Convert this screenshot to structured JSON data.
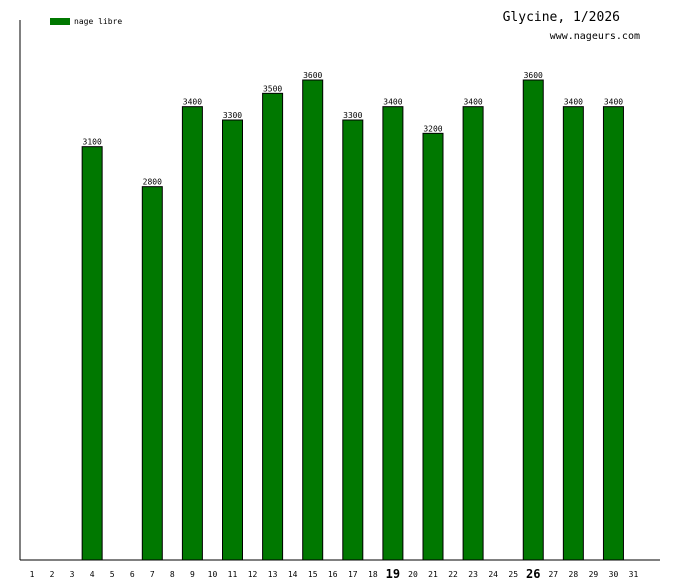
{
  "header": {
    "title": "Glycine, 1/2026",
    "site": "www.nageurs.com"
  },
  "legend": {
    "label": "nage libre",
    "color": "#007800"
  },
  "chart_data": {
    "type": "bar",
    "categories": [
      "1",
      "2",
      "3",
      "4",
      "5",
      "6",
      "7",
      "8",
      "9",
      "10",
      "11",
      "12",
      "13",
      "14",
      "15",
      "16",
      "17",
      "18",
      "19",
      "20",
      "21",
      "22",
      "23",
      "24",
      "25",
      "26",
      "27",
      "28",
      "29",
      "30",
      "31"
    ],
    "emphasized_categories": [
      "19",
      "26"
    ],
    "series": [
      {
        "name": "nage libre",
        "color": "#007800",
        "values": [
          null,
          null,
          null,
          3100,
          null,
          null,
          2800,
          null,
          3400,
          null,
          3300,
          null,
          3500,
          null,
          3600,
          null,
          3300,
          null,
          3400,
          null,
          3200,
          null,
          3400,
          null,
          null,
          3600,
          null,
          3400,
          null,
          3400,
          null
        ]
      }
    ],
    "ylim": [
      0,
      3600
    ],
    "grid": false,
    "legend_position": "top-left"
  }
}
